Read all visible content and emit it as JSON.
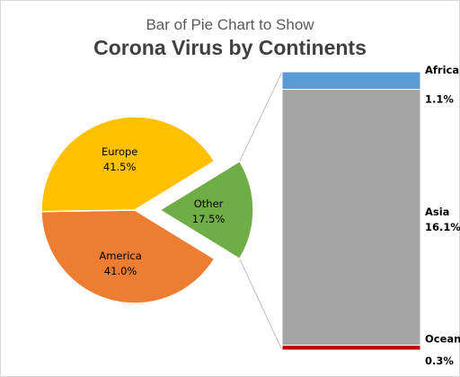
{
  "chart_data": {
    "type": "pie",
    "subtitle": "Bar of Pie Chart to Show",
    "title": "Corona Virus by Continents",
    "pie": [
      {
        "label": "Europe",
        "value": 41.5,
        "display": "41.5%",
        "color": "#FFC000"
      },
      {
        "label": "America",
        "value": 41.0,
        "display": "41.0%",
        "color": "#ED7D31"
      },
      {
        "label": "Other",
        "value": 17.5,
        "display": "17.5%",
        "color": "#70AD47"
      }
    ],
    "bar": [
      {
        "label": "Africa",
        "value": 1.1,
        "display": "1.1%",
        "color": "#5B9BD5"
      },
      {
        "label": "Asia",
        "value": 16.1,
        "display": "16.1%",
        "color": "#A5A5A5"
      },
      {
        "label": "Oceania",
        "value": 0.3,
        "display": "0.3%",
        "color": "#C00000"
      }
    ]
  }
}
